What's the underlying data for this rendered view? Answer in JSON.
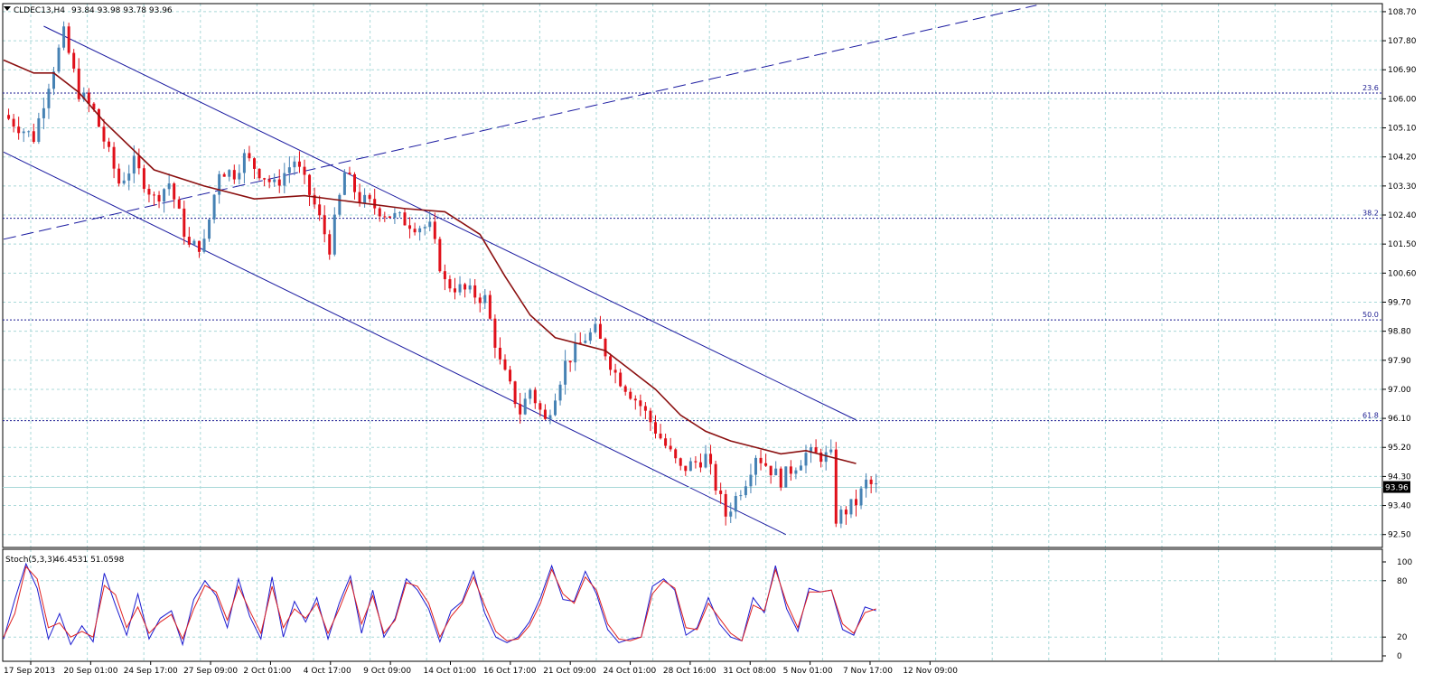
{
  "header": {
    "symbol_timeframe": "CLDEC13,H4",
    "ohlc": "93.84 93.98 93.78 93.96"
  },
  "colors": {
    "background": "#ffffff",
    "grid": "#a8d8d8",
    "axis": "#000000",
    "bull": "#4682b4",
    "bear": "#e0101a",
    "ma": "#8b1010",
    "channel": "#1a1aa0",
    "fib": "#1a1a90",
    "stoch_main": "#1c1cd0",
    "stoch_signal": "#e02020"
  },
  "chart_data": [
    {
      "type": "candlestick",
      "symbol": "CLDEC13",
      "timeframe": "H4",
      "last_price": "93.96",
      "ylim": [
        92.1,
        108.95
      ],
      "y_ticks": [
        "108.70",
        "107.80",
        "106.90",
        "106.00",
        "105.10",
        "104.20",
        "103.30",
        "102.40",
        "101.50",
        "100.60",
        "99.70",
        "98.80",
        "97.90",
        "97.00",
        "96.10",
        "95.20",
        "94.30",
        "93.40",
        "92.50"
      ],
      "x_ticks": [
        "17 Sep 2013",
        "20 Sep 01:00",
        "24 Sep 17:00",
        "27 Sep 09:00",
        "2 Oct 01:00",
        "4 Oct 17:00",
        "9 Oct 09:00",
        "14 Oct 01:00",
        "16 Oct 17:00",
        "21 Oct 09:00",
        "24 Oct 01:00",
        "28 Oct 16:00",
        "31 Oct 08:00",
        "5 Nov 01:00",
        "7 Nov 17:00",
        "12 Nov 09:00"
      ],
      "price_path": [
        [
          0,
          105.5
        ],
        [
          6,
          104.8
        ],
        [
          9,
          106.5
        ],
        [
          12,
          108.0
        ],
        [
          15,
          106.2
        ],
        [
          18,
          105.6
        ],
        [
          23,
          103.4
        ],
        [
          26,
          104.0
        ],
        [
          30,
          102.9
        ],
        [
          33,
          103.4
        ],
        [
          37,
          101.4
        ],
        [
          40,
          101.5
        ],
        [
          43,
          103.8
        ],
        [
          46,
          103.7
        ],
        [
          48,
          104.2
        ],
        [
          54,
          103.3
        ],
        [
          58,
          104.1
        ],
        [
          62,
          102.7
        ],
        [
          65,
          101.4
        ],
        [
          68,
          103.7
        ],
        [
          71,
          102.9
        ],
        [
          77,
          102.4
        ],
        [
          82,
          102.1
        ],
        [
          85,
          102.0
        ],
        [
          88,
          100.3
        ],
        [
          96,
          99.8
        ],
        [
          99,
          97.8
        ],
        [
          103,
          96.3
        ],
        [
          105,
          97.0
        ],
        [
          108,
          96.0
        ],
        [
          112,
          97.8
        ],
        [
          116,
          98.6
        ],
        [
          118,
          98.8
        ],
        [
          122,
          97.5
        ],
        [
          127,
          96.5
        ],
        [
          133,
          95.0
        ],
        [
          135,
          94.5
        ],
        [
          140,
          94.9
        ],
        [
          144,
          93.1
        ],
        [
          148,
          94.2
        ],
        [
          150,
          95.0
        ],
        [
          155,
          94.2
        ],
        [
          160,
          95.0
        ],
        [
          165,
          94.9
        ],
        [
          166,
          93.0
        ],
        [
          170,
          93.5
        ],
        [
          172,
          94.1
        ],
        [
          174,
          93.96
        ]
      ],
      "moving_average": [
        [
          0,
          107.2
        ],
        [
          6,
          106.8
        ],
        [
          10,
          106.8
        ],
        [
          15,
          106.2
        ],
        [
          20,
          105.3
        ],
        [
          30,
          103.8
        ],
        [
          40,
          103.3
        ],
        [
          50,
          102.9
        ],
        [
          60,
          103.0
        ],
        [
          70,
          102.8
        ],
        [
          80,
          102.6
        ],
        [
          88,
          102.5
        ],
        [
          95,
          101.8
        ],
        [
          100,
          100.5
        ],
        [
          105,
          99.3
        ],
        [
          110,
          98.6
        ],
        [
          115,
          98.4
        ],
        [
          120,
          98.2
        ],
        [
          125,
          97.6
        ],
        [
          130,
          97.0
        ],
        [
          135,
          96.2
        ],
        [
          140,
          95.7
        ],
        [
          145,
          95.4
        ],
        [
          150,
          95.2
        ],
        [
          155,
          95.0
        ],
        [
          160,
          95.1
        ],
        [
          165,
          94.9
        ],
        [
          170,
          94.7
        ]
      ],
      "fibonacci_levels": [
        {
          "label": "23.6",
          "price": 106.18
        },
        {
          "label": "38.2",
          "price": 102.3
        },
        {
          "label": "50.0",
          "price": 99.15
        },
        {
          "label": "61.8",
          "price": 96.03
        }
      ],
      "trend_lines": [
        {
          "name": "channel-upper",
          "from": [
            8,
            108.25
          ],
          "to": [
            170,
            96.05
          ]
        },
        {
          "name": "channel-lower",
          "from": [
            0,
            104.35
          ],
          "to": [
            156,
            92.5
          ]
        },
        {
          "name": "rising-dashed",
          "from": [
            0,
            101.65
          ],
          "to": [
            206,
            108.9
          ]
        }
      ]
    },
    {
      "type": "line",
      "indicator": "Stoch(5,3,3)",
      "values_label": "46.4531 51.0598",
      "ylim": [
        0,
        100
      ],
      "y_ticks": [
        "100",
        "80",
        "20",
        "0"
      ],
      "series": [
        {
          "name": "main",
          "values": [
            18,
            60,
            98,
            72,
            18,
            45,
            12,
            32,
            15,
            88,
            54,
            22,
            66,
            18,
            40,
            48,
            12,
            60,
            80,
            64,
            30,
            82,
            42,
            18,
            84,
            20,
            58,
            36,
            62,
            18,
            56,
            85,
            24,
            70,
            20,
            40,
            82,
            70,
            50,
            15,
            48,
            58,
            90,
            46,
            20,
            14,
            20,
            36,
            62,
            96,
            60,
            58,
            90,
            66,
            28,
            14,
            18,
            20,
            74,
            82,
            70,
            22,
            30,
            62,
            34,
            20,
            16,
            62,
            46,
            96,
            50,
            26,
            72,
            68,
            70,
            28,
            22,
            52,
            48
          ]
        },
        {
          "name": "signal",
          "values": [
            20,
            45,
            95,
            82,
            30,
            35,
            20,
            26,
            20,
            75,
            65,
            30,
            52,
            24,
            36,
            44,
            18,
            50,
            75,
            68,
            38,
            74,
            48,
            24,
            74,
            30,
            50,
            40,
            56,
            24,
            50,
            80,
            34,
            64,
            24,
            38,
            78,
            74,
            56,
            20,
            42,
            56,
            84,
            54,
            26,
            16,
            18,
            32,
            56,
            92,
            66,
            56,
            84,
            70,
            34,
            18,
            16,
            20,
            66,
            80,
            72,
            30,
            28,
            56,
            40,
            24,
            16,
            54,
            48,
            92,
            56,
            30,
            68,
            68,
            70,
            34,
            24,
            46,
            50
          ]
        }
      ]
    }
  ]
}
